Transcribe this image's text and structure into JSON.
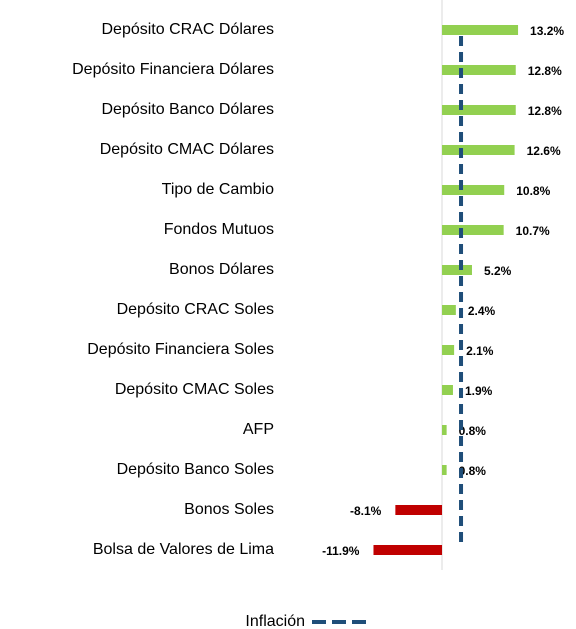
{
  "chart_data": {
    "type": "bar",
    "orientation": "horizontal",
    "categories": [
      "Depósito CRAC Dólares",
      "Depósito Financiera Dólares",
      "Depósito Banco Dólares",
      "Depósito CMAC Dólares",
      "Tipo de Cambio",
      "Fondos Mutuos",
      "Bonos Dólares",
      "Depósito CRAC Soles",
      "Depósito Financiera Soles",
      "Depósito CMAC Soles",
      "AFP",
      "Depósito Banco Soles",
      "Bonos Soles",
      "Bolsa de Valores de Lima"
    ],
    "values": [
      13.2,
      12.8,
      12.8,
      12.6,
      10.8,
      10.7,
      5.2,
      2.4,
      2.1,
      1.9,
      0.8,
      0.8,
      -8.1,
      -11.9
    ],
    "value_labels": [
      "13.2%",
      "12.8%",
      "12.8%",
      "12.6%",
      "10.8%",
      "10.7%",
      "5.2%",
      "2.4%",
      "2.1%",
      "1.9%",
      "0.8%",
      "0.8%",
      "-8.1%",
      "-11.9%"
    ],
    "positive_color": "#92d050",
    "negative_color": "#c00000",
    "reference_line": {
      "name": "Inflación",
      "value": 3.3,
      "color": "#1f4e79"
    },
    "xlim": [
      -12,
      23
    ]
  }
}
